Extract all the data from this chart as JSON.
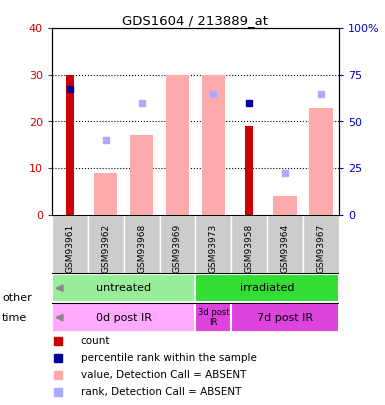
{
  "title": "GDS1604 / 213889_at",
  "samples": [
    "GSM93961",
    "GSM93962",
    "GSM93968",
    "GSM93969",
    "GSM93973",
    "GSM93958",
    "GSM93964",
    "GSM93967"
  ],
  "count_values": [
    30,
    0,
    0,
    0,
    0,
    19,
    0,
    0
  ],
  "count_color": "#cc0000",
  "rank_values": [
    27,
    0,
    0,
    0,
    0,
    24,
    0,
    0
  ],
  "rank_color": "#000099",
  "value_absent": [
    0,
    9,
    17,
    30,
    30,
    0,
    4,
    23
  ],
  "value_absent_color": "#ffaaaa",
  "rank_absent": [
    0,
    16,
    24,
    0,
    26,
    0,
    9,
    26
  ],
  "rank_absent_color": "#aaaaff",
  "ylim_left": [
    0,
    40
  ],
  "ylim_right": [
    0,
    100
  ],
  "yticks_left": [
    0,
    10,
    20,
    30,
    40
  ],
  "yticks_right": [
    0,
    25,
    50,
    75,
    100
  ],
  "ytick_labels_left": [
    "0",
    "10",
    "20",
    "30",
    "40"
  ],
  "ytick_labels_right": [
    "0",
    "25",
    "50",
    "75",
    "100%"
  ],
  "group_other": [
    {
      "label": "untreated",
      "start": 0,
      "end": 4,
      "color": "#99ee99"
    },
    {
      "label": "irradiated",
      "start": 4,
      "end": 8,
      "color": "#33dd33"
    }
  ],
  "group_time": [
    {
      "label": "0d post IR",
      "start": 0,
      "end": 4,
      "color": "#ffaaff"
    },
    {
      "label": "3d post\nIR",
      "start": 4,
      "end": 5,
      "color": "#dd44dd",
      "fontsize": 6
    },
    {
      "label": "7d post IR",
      "start": 5,
      "end": 8,
      "color": "#dd44dd"
    }
  ],
  "label_other": "other",
  "label_time": "time",
  "tick_label_color_left": "#cc0000",
  "tick_label_color_right": "#0000cc",
  "legend_items": [
    {
      "label": "count",
      "color": "#cc0000"
    },
    {
      "label": "percentile rank within the sample",
      "color": "#000099"
    },
    {
      "label": "value, Detection Call = ABSENT",
      "color": "#ffaaaa"
    },
    {
      "label": "rank, Detection Call = ABSENT",
      "color": "#aaaaff"
    }
  ]
}
